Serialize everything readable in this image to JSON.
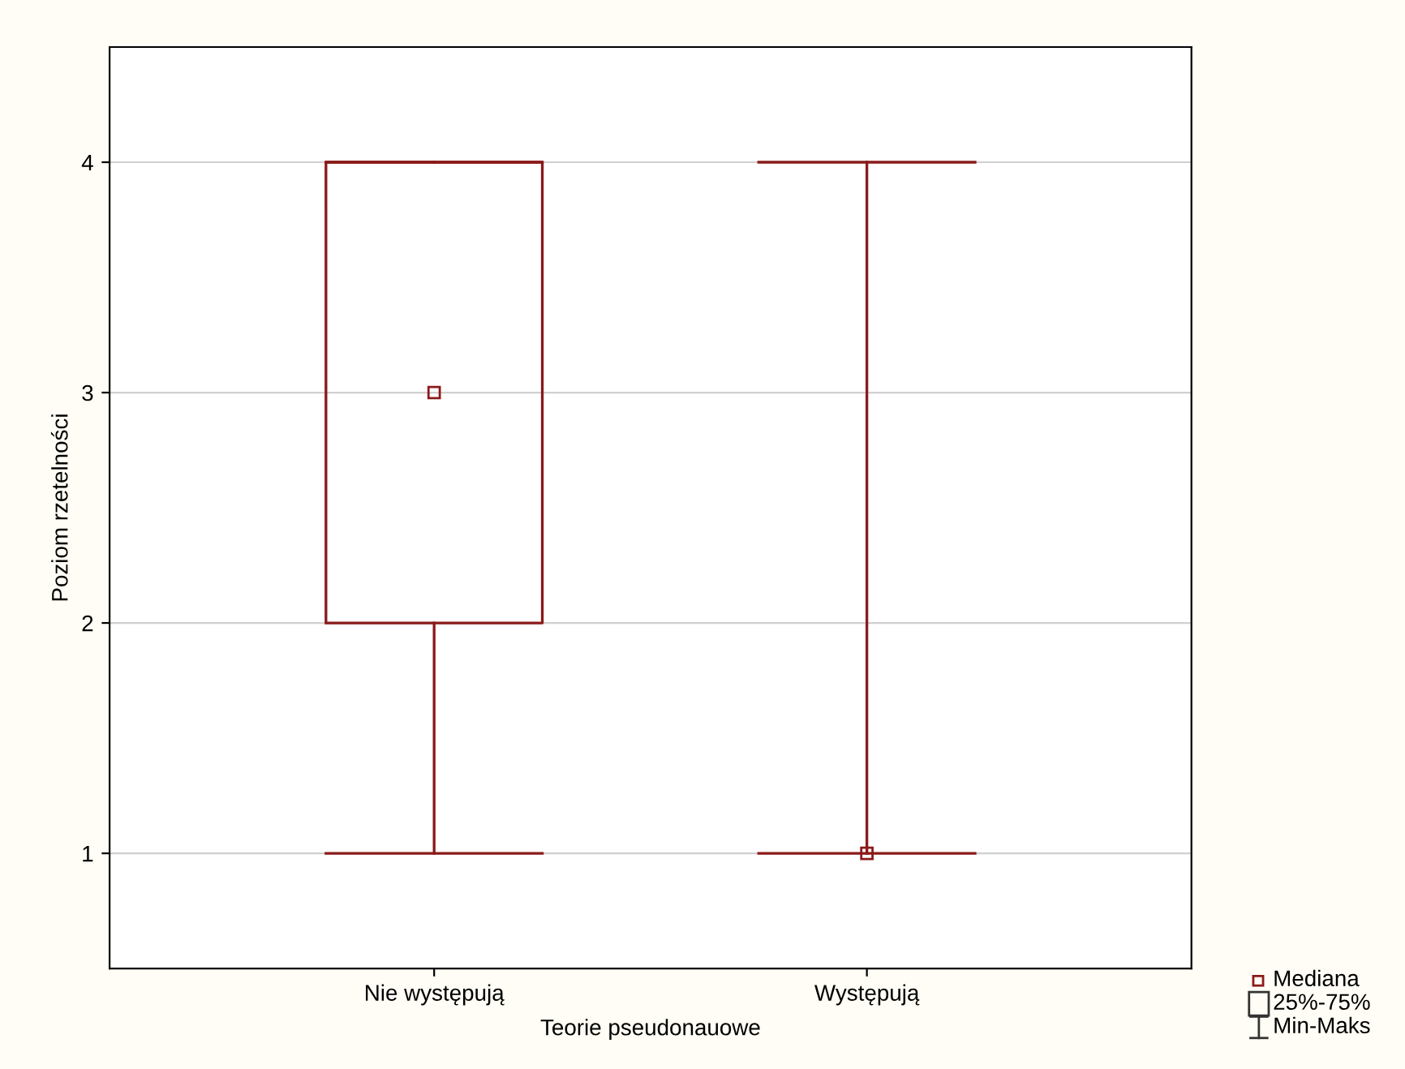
{
  "chart_data": {
    "type": "box",
    "xlabel": "Teorie pseudonauowe",
    "ylabel": "Poziom rzetelności",
    "categories": [
      "Nie występują",
      "Występują"
    ],
    "boxes": [
      {
        "low": 1,
        "q1": 2,
        "median": 3,
        "q3": 4,
        "high": 4
      },
      {
        "low": 1,
        "q1": 1,
        "median": 1,
        "q3": 1,
        "high": 4
      }
    ],
    "color": "#8b1a1a",
    "ylim": [
      0.5,
      4.5
    ],
    "yticks": [
      1,
      2,
      3,
      4
    ],
    "grid": "y",
    "annotations": [
      "Mediana",
      "25%-75%",
      "Min-Maks"
    ]
  }
}
